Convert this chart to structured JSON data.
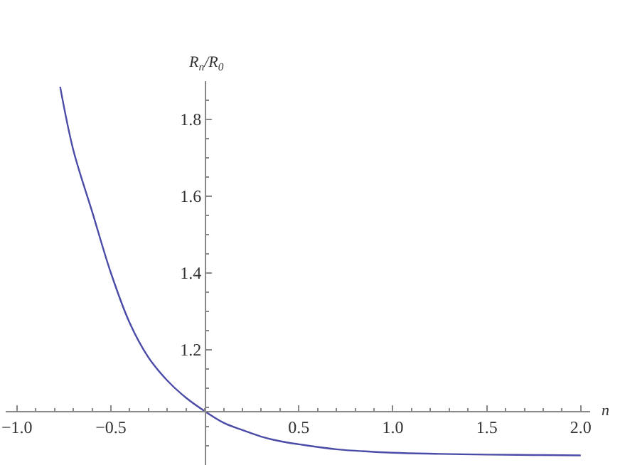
{
  "chart_data": {
    "type": "line",
    "xlabel": "n",
    "ylabel": "R$_{n}$/R$_{0}$",
    "x": [
      -0.77,
      -0.7,
      -0.6,
      -0.5,
      -0.4,
      -0.3,
      -0.2,
      -0.1,
      0,
      0.1,
      0.2,
      0.3,
      0.4,
      0.5,
      0.7,
      1.0,
      1.25,
      1.5,
      1.75,
      2.0
    ],
    "series": [
      {
        "color": "#4b4ba8",
        "values": [
          1.885,
          1.72,
          1.56,
          1.4,
          1.27,
          1.18,
          1.12,
          1.075,
          1.04,
          1.01,
          0.991,
          0.974,
          0.962,
          0.954,
          0.941,
          0.932,
          0.929,
          0.927,
          0.926,
          0.925
        ]
      }
    ],
    "xlim": [
      -1.06,
      2.05
    ],
    "ylim": [
      0.9,
      1.9
    ],
    "xticks": [
      {
        "value": -1,
        "label": "−1.0"
      },
      {
        "value": -0.5,
        "label": "−0.5"
      },
      {
        "value": 0.5,
        "label": "0.5"
      },
      {
        "value": 1,
        "label": "1.0"
      },
      {
        "value": 1.5,
        "label": "1.5"
      },
      {
        "value": 2,
        "label": "2.0"
      }
    ],
    "yticks": [
      1.2,
      1.4,
      1.6,
      1.8
    ],
    "grid": false,
    "marker": "none",
    "line_style": "solid"
  }
}
